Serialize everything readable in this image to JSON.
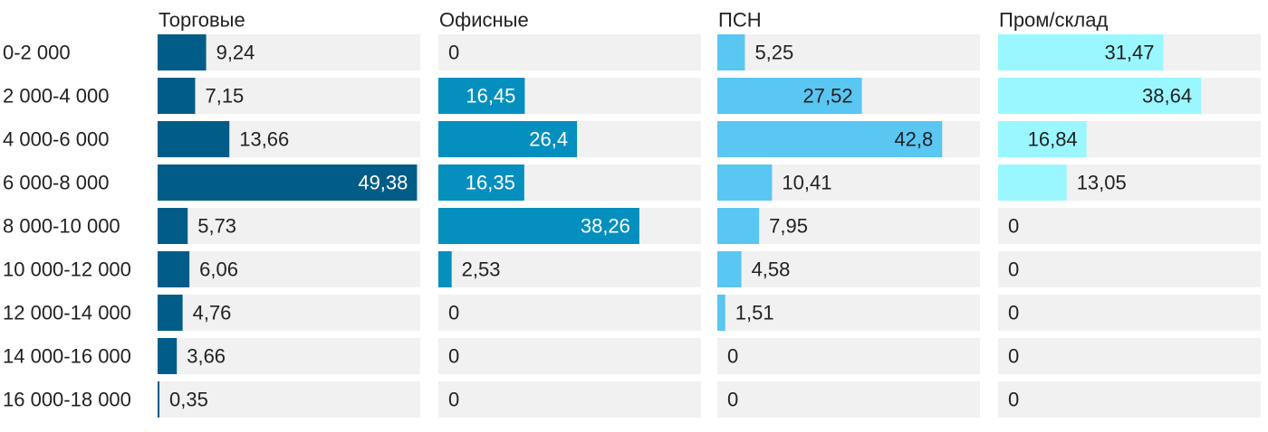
{
  "chart_data": {
    "type": "bar",
    "orientation": "horizontal",
    "categories": [
      "0-2 000",
      "2 000-4 000",
      "4 000-6 000",
      "6 000-8 000",
      "8 000-10 000",
      "10 000-12 000",
      "12 000-14 000",
      "14 000-16 000",
      "16 000-18 000"
    ],
    "series": [
      {
        "name": "Торговые",
        "color": "#015d87",
        "values": [
          9.24,
          7.15,
          13.66,
          49.38,
          5.73,
          6.06,
          4.76,
          3.66,
          0.35
        ]
      },
      {
        "name": "Офисные",
        "color": "#058fbf",
        "values": [
          0,
          16.45,
          26.4,
          16.35,
          38.26,
          2.53,
          0,
          0,
          0
        ]
      },
      {
        "name": "ПСН",
        "color": "#5ac6f2",
        "values": [
          5.25,
          27.52,
          42.8,
          10.41,
          7.95,
          4.58,
          1.51,
          0,
          0
        ]
      },
      {
        "name": "Пром/склад",
        "color": "#9af7ff",
        "values": [
          31.47,
          38.64,
          16.84,
          13.05,
          0,
          0,
          0,
          0,
          0
        ]
      }
    ],
    "labels": [
      [
        "9,24",
        "7,15",
        "13,66",
        "49,38",
        "5,73",
        "6,06",
        "4,76",
        "3,66",
        "0,35"
      ],
      [
        "0",
        "16,45",
        "26,4",
        "16,35",
        "38,26",
        "2,53",
        "0",
        "0",
        "0"
      ],
      [
        "5,25",
        "27,52",
        "42,8",
        "10,41",
        "7,95",
        "4,58",
        "1,51",
        "0",
        "0"
      ],
      [
        "31,47",
        "38,64",
        "16,84",
        "13,05",
        "0",
        "0",
        "0",
        "0",
        "0"
      ]
    ],
    "xlim": [
      0,
      50
    ],
    "background_track_color": "#f1f1f1",
    "legend": "none",
    "grid": false
  }
}
